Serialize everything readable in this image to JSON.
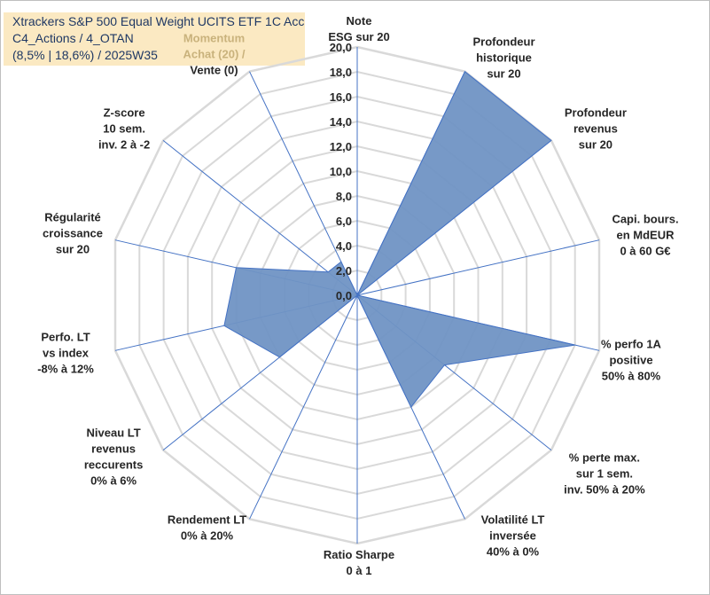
{
  "header": {
    "line1": "Xtrackers S&P 500 Equal Weight UCITS ETF 1C Acc",
    "line2": "C4_Actions / 4_OTAN",
    "line3": "(8,5% | 18,6%) / 2025W35"
  },
  "colors": {
    "fill": "#7094c4",
    "stroke": "#4472c4",
    "grid": "#d9d9d9",
    "spoke": "#4472c4",
    "title_bg": "#fbe9c2",
    "momentum_text": "#c9b27c"
  },
  "chart_data": {
    "type": "radar",
    "ylim": [
      0,
      20
    ],
    "ticks": [
      "0,0",
      "2,0",
      "4,0",
      "6,0",
      "8,0",
      "10,0",
      "12,0",
      "14,0",
      "16,0",
      "18,0",
      "20,0"
    ],
    "axes": [
      {
        "label": [
          "Note",
          "ESG sur 20"
        ],
        "value": 0
      },
      {
        "label": [
          "Profondeur",
          "historique",
          "sur 20"
        ],
        "value": 20
      },
      {
        "label": [
          "Profondeur",
          "revenus",
          "sur 20"
        ],
        "value": 20
      },
      {
        "label": [
          "Capi. bours.",
          "en MdEUR",
          "0 à 60 G€"
        ],
        "value": 0
      },
      {
        "label": [
          "% perfo 1A",
          "positive",
          "50% à 80%"
        ],
        "value": 18
      },
      {
        "label": [
          "% perte max.",
          "sur 1 sem.",
          "inv. 50% à 20%"
        ],
        "value": 9
      },
      {
        "label": [
          "Volatilité LT",
          "inversée",
          "40% à 0%"
        ],
        "value": 10
      },
      {
        "label": [
          "Ratio Sharpe",
          "0 à 1"
        ],
        "value": 0
      },
      {
        "label": [
          "Rendement LT",
          "0% à 20%"
        ],
        "value": 0
      },
      {
        "label": [
          "Niveau LT",
          "revenus",
          "reccurents",
          "0% à 6%"
        ],
        "value": 8
      },
      {
        "label": [
          "Perfo. LT",
          "vs index",
          "-8% à 12%"
        ],
        "value": 11
      },
      {
        "label": [
          "Régularité",
          "croissance",
          "sur 20"
        ],
        "value": 10
      },
      {
        "label": [
          "Z-score",
          "10 sem.",
          "inv. 2 à -2"
        ],
        "value": 3
      },
      {
        "label": [
          "Momentum",
          "Achat (20) /",
          "Vente (0)"
        ],
        "value": 3
      }
    ]
  }
}
